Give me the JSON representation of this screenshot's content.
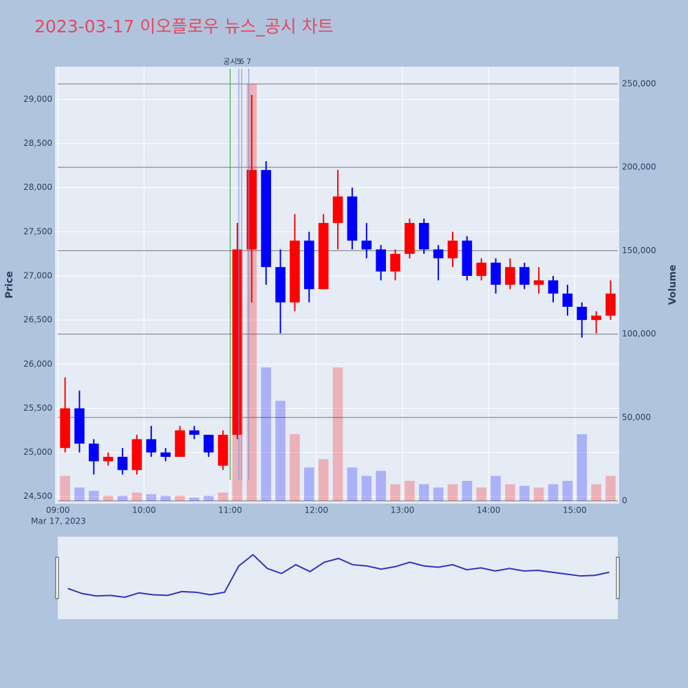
{
  "chart_data": {
    "type": "candlestick",
    "title": "2023-03-17 이오플로우 뉴스_공시 차트",
    "date_label": "Mar 17, 2023",
    "y_label": "Price",
    "y2_label": "Volume",
    "up_color": "#ff0000",
    "down_color": "#0000ff",
    "x": [
      "09:00",
      "09:10",
      "09:20",
      "09:30",
      "09:40",
      "09:50",
      "10:00",
      "10:10",
      "10:20",
      "10:30",
      "10:40",
      "10:50",
      "11:00",
      "11:10",
      "11:20",
      "11:30",
      "11:40",
      "11:50",
      "12:00",
      "12:10",
      "12:20",
      "12:30",
      "12:40",
      "12:50",
      "13:00",
      "13:10",
      "13:20",
      "13:30",
      "13:40",
      "13:50",
      "14:00",
      "14:10",
      "14:20",
      "14:30",
      "14:40",
      "14:50",
      "15:00",
      "15:10",
      "15:20"
    ],
    "open": [
      25050,
      25500,
      25100,
      24900,
      24950,
      24800,
      25150,
      25000,
      24950,
      25250,
      25200,
      24850,
      25200,
      27300,
      28200,
      27100,
      26700,
      27400,
      26850,
      27600,
      27900,
      27400,
      27300,
      27050,
      27250,
      27600,
      27300,
      27200,
      27400,
      27000,
      27150,
      26900,
      27100,
      26900,
      26950,
      26800,
      26650,
      26500,
      26550
    ],
    "high": [
      25850,
      25700,
      25150,
      25000,
      25050,
      25200,
      25300,
      25050,
      25300,
      25300,
      25200,
      25250,
      27600,
      29050,
      28300,
      27300,
      27700,
      27500,
      27700,
      28200,
      28000,
      27600,
      27350,
      27300,
      27650,
      27650,
      27350,
      27500,
      27450,
      27200,
      27200,
      27200,
      27150,
      27100,
      27000,
      26900,
      26700,
      26600,
      26950
    ],
    "low": [
      25000,
      25000,
      24750,
      24850,
      24750,
      24750,
      24950,
      24900,
      24950,
      25150,
      24950,
      24800,
      25150,
      26700,
      26900,
      26350,
      26600,
      26700,
      26850,
      27300,
      27300,
      27200,
      26950,
      26950,
      27200,
      27250,
      26950,
      27100,
      26950,
      26950,
      26800,
      26850,
      26850,
      26800,
      26700,
      26550,
      26300,
      26350,
      26500
    ],
    "close": [
      25500,
      25100,
      24900,
      24950,
      24800,
      25150,
      25000,
      24950,
      25250,
      25200,
      25000,
      25200,
      27300,
      28200,
      27100,
      26700,
      27400,
      26850,
      27600,
      27900,
      27400,
      27300,
      27050,
      27250,
      27600,
      27300,
      27200,
      27400,
      27000,
      27150,
      26900,
      27100,
      26900,
      26950,
      26800,
      26650,
      26500,
      26550,
      26800
    ],
    "volume": [
      15000,
      8000,
      6000,
      3000,
      3000,
      5000,
      4000,
      3000,
      3000,
      2000,
      3000,
      5000,
      120000,
      250000,
      80000,
      60000,
      40000,
      20000,
      25000,
      80000,
      20000,
      15000,
      18000,
      10000,
      12000,
      10000,
      8000,
      10000,
      12000,
      8000,
      15000,
      10000,
      9000,
      8000,
      10000,
      12000,
      40000,
      10000,
      15000
    ],
    "xlim": [
      "08:58",
      "15:31"
    ],
    "xticks": [
      "09:00",
      "10:00",
      "11:00",
      "12:00",
      "13:00",
      "14:00",
      "15:00"
    ],
    "ylim": [
      24420,
      29370
    ],
    "yticks": [
      {
        "value": 24500,
        "label": "24,500"
      },
      {
        "value": 25000,
        "label": "25,000"
      },
      {
        "value": 25500,
        "label": "25,500"
      },
      {
        "value": 26000,
        "label": "26,000"
      },
      {
        "value": 26500,
        "label": "26,500"
      },
      {
        "value": 27000,
        "label": "27,000"
      },
      {
        "value": 27500,
        "label": "27,500"
      },
      {
        "value": 28000,
        "label": "28,000"
      },
      {
        "value": 28500,
        "label": "28,500"
      },
      {
        "value": 29000,
        "label": "29,000"
      }
    ],
    "y2lim": [
      -1650,
      260300
    ],
    "y2ticks": [
      0,
      {
        "value": 50000,
        "label": "50,000"
      },
      {
        "value": 100000,
        "label": "100,000"
      },
      {
        "value": 150000,
        "label": "150,000"
      },
      {
        "value": 200000,
        "label": "200,000"
      },
      {
        "value": 250000,
        "label": "250,000"
      }
    ],
    "annotations": [
      {
        "text": "공시",
        "x": "11:00",
        "color": "#2ca02c"
      },
      {
        "text": "5",
        "x": "11:06",
        "color": "#7a8fd8"
      },
      {
        "text": "6",
        "x": "11:08",
        "color": "#7a8fd8"
      },
      {
        "text": "7",
        "x": "11:13",
        "color": "#7a8fd8"
      }
    ]
  }
}
